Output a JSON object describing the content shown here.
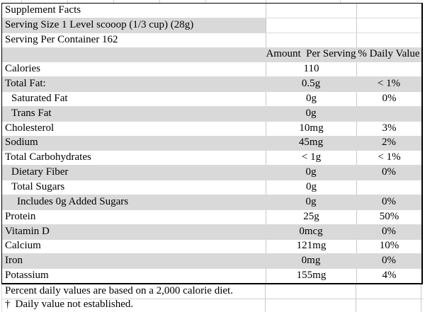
{
  "table": {
    "rows": [
      {
        "label": "Supplement Facts",
        "amount": "",
        "dv": "",
        "shade": "none",
        "indent": 0
      },
      {
        "label": "Serving Size 1 Level scooop (1/3 cup) (28g)",
        "amount": "",
        "dv": "",
        "shade": "label",
        "indent": 0
      },
      {
        "label": "Serving Per Container 162",
        "amount": "",
        "dv": "",
        "shade": "none",
        "indent": 0
      },
      {
        "label": "",
        "amount": "Amount  Per Serving",
        "dv": "% Daily Value",
        "shade": "full",
        "indent": 0,
        "header": true
      },
      {
        "label": "Calories",
        "amount": "110",
        "dv": "",
        "shade": "none",
        "indent": 0
      },
      {
        "label": "Total Fat:",
        "amount": "0.5g",
        "dv": "< 1%",
        "shade": "full",
        "indent": 0
      },
      {
        "label": "Saturated Fat",
        "amount": "0g",
        "dv": "0%",
        "shade": "none",
        "indent": 1
      },
      {
        "label": "Trans Fat",
        "amount": "0g",
        "dv": "",
        "shade": "full",
        "indent": 1
      },
      {
        "label": "Cholesterol",
        "amount": "10mg",
        "dv": "3%",
        "shade": "none",
        "indent": 0
      },
      {
        "label": "Sodium",
        "amount": "45mg",
        "dv": "2%",
        "shade": "full",
        "indent": 0
      },
      {
        "label": "Total Carbohydrates",
        "amount": "< 1g",
        "dv": "< 1%",
        "shade": "none",
        "indent": 0
      },
      {
        "label": "Dietary Fiber",
        "amount": "0g",
        "dv": "0%",
        "shade": "full",
        "indent": 1
      },
      {
        "label": "Total Sugars",
        "amount": "0g",
        "dv": "",
        "shade": "none",
        "indent": 1
      },
      {
        "label": "Includes 0g Added Sugars",
        "amount": "0g",
        "dv": "0%",
        "shade": "full",
        "indent": 2
      },
      {
        "label": "Protein",
        "amount": "25g",
        "dv": "50%",
        "shade": "none",
        "indent": 0
      },
      {
        "label": "Vitamin D",
        "amount": "0mcg",
        "dv": "0%",
        "shade": "full",
        "indent": 0
      },
      {
        "label": "Calcium",
        "amount": "121mg",
        "dv": "10%",
        "shade": "none",
        "indent": 0
      },
      {
        "label": "Iron",
        "amount": "0mg",
        "dv": "0%",
        "shade": "full",
        "indent": 0
      },
      {
        "label": "Potassium",
        "amount": "155mg",
        "dv": "4%",
        "shade": "none",
        "indent": 0
      }
    ]
  },
  "footnotes": {
    "line1": "Percent daily values are based on a 2,000 calorie diet.",
    "dagger": "†",
    "line2": "Daily value not established."
  },
  "colors": {
    "row_shade": "#d9d9d9",
    "grid_line": "#c9c9c9",
    "table_border": "#000000",
    "text": "#000000",
    "background": "#ffffff"
  }
}
